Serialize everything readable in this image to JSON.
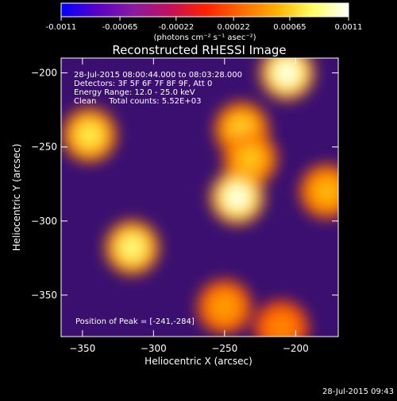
{
  "colorbar": {
    "tick_labels": [
      "-0.0011",
      "-0.00065",
      "-0.00022",
      "0.00022",
      "0.00065",
      "0.0011"
    ],
    "tick_values": [
      -0.0011,
      -0.00065,
      -0.00022,
      0.00022,
      0.00065,
      0.0011
    ],
    "range": [
      -0.0011,
      0.0011
    ],
    "label": "(photons cm⁻² s⁻¹ asec⁻²)",
    "colors": [
      "#0000ff",
      "#5a00c8",
      "#8a1aa0",
      "#c01060",
      "#ff2000",
      "#ff6a00",
      "#ffb000",
      "#ffff60",
      "#ffffff"
    ]
  },
  "chart_data": {
    "type": "heatmap",
    "title": "Reconstructed RHESSI Image",
    "xlabel": "Heliocentric X (arcsec)",
    "ylabel": "Heliocentric Y (arcsec)",
    "xlim": [
      -365,
      -170
    ],
    "ylim": [
      -378,
      -190
    ],
    "x_ticks": [
      -350,
      -300,
      -250,
      -200
    ],
    "y_ticks": [
      -350,
      -300,
      -250,
      -200
    ],
    "x_tick_labels": [
      "−350",
      "−300",
      "−250",
      "−200"
    ],
    "y_tick_labels": [
      "−350",
      "−300",
      "−250",
      "−200"
    ],
    "value_range": [
      -0.0011,
      0.0011
    ],
    "peak_position": [
      -241,
      -284
    ],
    "sources": [
      {
        "x": -206,
        "y": -200,
        "value": 0.0011
      },
      {
        "x": -238,
        "y": -238,
        "value": 0.0007
      },
      {
        "x": -232,
        "y": -258,
        "value": 0.00065
      },
      {
        "x": -241,
        "y": -284,
        "value": 0.0011
      },
      {
        "x": -345,
        "y": -242,
        "value": 0.0008
      },
      {
        "x": -315,
        "y": -318,
        "value": 0.0009
      },
      {
        "x": -178,
        "y": -280,
        "value": 0.0006
      },
      {
        "x": -250,
        "y": -358,
        "value": 0.0005
      },
      {
        "x": -210,
        "y": -372,
        "value": 0.0004
      }
    ],
    "annotations": [
      "28-Jul-2015 08:00:44.000 to 08:03:28.000",
      "Detectors: 3F 5F 6F 7F 8F 9F, Att 0",
      "Energy Range: 12.0 - 25.0 keV",
      "Clean     Total counts: 5.52E+03"
    ],
    "peak_label": "Position of Peak = [-241,-284]"
  },
  "footer": {
    "timestamp": "28-Jul-2015 09:43"
  }
}
